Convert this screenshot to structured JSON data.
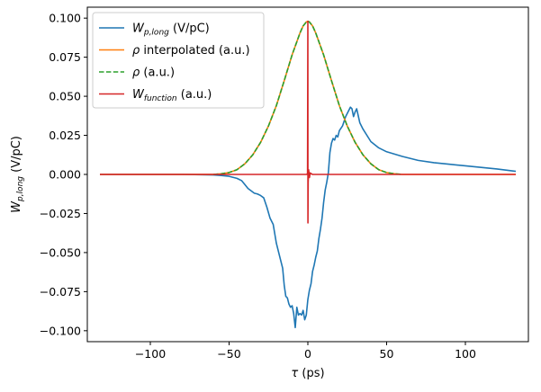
{
  "chart_data": {
    "type": "line",
    "xlabel_main": "τ",
    "xlabel_unit": " (ps)",
    "ylabel_main": "W",
    "ylabel_sub": "p,long",
    "ylabel_unit": " (V/pC)",
    "xlim": [
      -140,
      140
    ],
    "ylim": [
      -0.107,
      0.107
    ],
    "xticks": [
      -100,
      -50,
      0,
      50,
      100
    ],
    "xtick_labels": [
      "−100",
      "−50",
      "0",
      "50",
      "100"
    ],
    "yticks": [
      0.1,
      0.075,
      0.05,
      0.025,
      0,
      -0.025,
      -0.05,
      -0.075,
      -0.1
    ],
    "ytick_labels": [
      "0.100",
      "0.075",
      "0.050",
      "0.025",
      "0.000",
      "−0.025",
      "−0.050",
      "−0.075",
      "−0.100"
    ],
    "grid": false,
    "legend_position": "top-left",
    "series": [
      {
        "legend_main": "W",
        "legend_sub": "p,long",
        "legend_rest": " (V/pC)",
        "legend_italic": true,
        "color": "#1f77b4",
        "style": "solid",
        "x": [
          -132,
          -100,
          -80,
          -60,
          -55,
          -50,
          -45,
          -42,
          -40,
          -38,
          -36,
          -34,
          -32,
          -30,
          -28,
          -26,
          -24,
          -22,
          -20,
          -18,
          -16,
          -15,
          -14,
          -13,
          -12,
          -11,
          -10,
          -9,
          -8,
          -7,
          -6,
          -5,
          -4,
          -3,
          -2,
          -1,
          0,
          1,
          2,
          3,
          4,
          5,
          6,
          7,
          8,
          9,
          10,
          11,
          12,
          13,
          14,
          15,
          16,
          17,
          18,
          19,
          20,
          22,
          24,
          26,
          27,
          28,
          29,
          30,
          31,
          33,
          35,
          40,
          45,
          50,
          60,
          70,
          80,
          90,
          100,
          110,
          120,
          132
        ],
        "y": [
          0,
          0,
          0,
          -0.0003,
          -0.0007,
          -0.0012,
          -0.0025,
          -0.004,
          -0.0065,
          -0.009,
          -0.0105,
          -0.012,
          -0.0125,
          -0.0135,
          -0.015,
          -0.021,
          -0.028,
          -0.032,
          -0.044,
          -0.052,
          -0.06,
          -0.071,
          -0.078,
          -0.079,
          -0.083,
          -0.085,
          -0.084,
          -0.089,
          -0.098,
          -0.085,
          -0.09,
          -0.089,
          -0.09,
          -0.087,
          -0.093,
          -0.09,
          -0.08,
          -0.074,
          -0.07,
          -0.062,
          -0.058,
          -0.053,
          -0.049,
          -0.041,
          -0.035,
          -0.028,
          -0.018,
          -0.01,
          -0.005,
          0.001,
          0.014,
          0.02,
          0.023,
          0.022,
          0.025,
          0.024,
          0.028,
          0.031,
          0.037,
          0.041,
          0.043,
          0.042,
          0.037,
          0.04,
          0.042,
          0.033,
          0.029,
          0.021,
          0.017,
          0.0145,
          0.0115,
          0.009,
          0.0075,
          0.0065,
          0.0055,
          0.0045,
          0.0035,
          0.002
        ]
      },
      {
        "legend_main": "ρ",
        "legend_sub": "",
        "legend_rest": " interpolated (a.u.)",
        "legend_italic": true,
        "color": "#ff7f0e",
        "style": "solid",
        "x": [
          -132,
          -60,
          -55,
          -50,
          -45,
          -40,
          -35,
          -30,
          -25,
          -20,
          -15,
          -10,
          -5,
          -3,
          -1,
          0,
          1,
          3,
          5,
          10,
          15,
          20,
          25,
          30,
          35,
          40,
          45,
          50,
          55,
          60,
          132
        ],
        "y": [
          0,
          0,
          0.0004,
          0.0012,
          0.003,
          0.0068,
          0.0125,
          0.0205,
          0.031,
          0.044,
          0.06,
          0.0765,
          0.0905,
          0.095,
          0.0975,
          0.098,
          0.0975,
          0.095,
          0.0905,
          0.0765,
          0.06,
          0.044,
          0.031,
          0.0205,
          0.0125,
          0.0068,
          0.003,
          0.0012,
          0.0004,
          0,
          0
        ]
      },
      {
        "legend_main": "ρ",
        "legend_sub": "",
        "legend_rest": " (a.u.)",
        "legend_italic": true,
        "color": "#2ca02c",
        "style": "dashed",
        "x": [
          -60,
          -55,
          -50,
          -45,
          -40,
          -35,
          -30,
          -25,
          -20,
          -15,
          -10,
          -5,
          -3,
          -1,
          0,
          1,
          3,
          5,
          10,
          15,
          20,
          25,
          30,
          35,
          40,
          45,
          50,
          55,
          60
        ],
        "y": [
          0,
          0.0004,
          0.0012,
          0.003,
          0.0068,
          0.0125,
          0.0205,
          0.031,
          0.044,
          0.06,
          0.0765,
          0.0905,
          0.095,
          0.0975,
          0.098,
          0.0975,
          0.095,
          0.0905,
          0.0765,
          0.06,
          0.044,
          0.031,
          0.0205,
          0.0125,
          0.0068,
          0.003,
          0.0012,
          0.0004,
          0
        ]
      },
      {
        "legend_main": "W",
        "legend_sub": "function",
        "legend_rest": " (a.u.)",
        "legend_italic": true,
        "color": "#d62728",
        "style": "solid",
        "x": [
          -132,
          -0.5,
          -0.2,
          0,
          0.05,
          0.2,
          0.5,
          1,
          1.5,
          2,
          3,
          5,
          132
        ],
        "y": [
          0,
          0,
          0.001,
          0.098,
          -0.031,
          -0.005,
          0.003,
          -0.002,
          0.001,
          0.0005,
          0,
          0,
          0
        ]
      }
    ]
  }
}
